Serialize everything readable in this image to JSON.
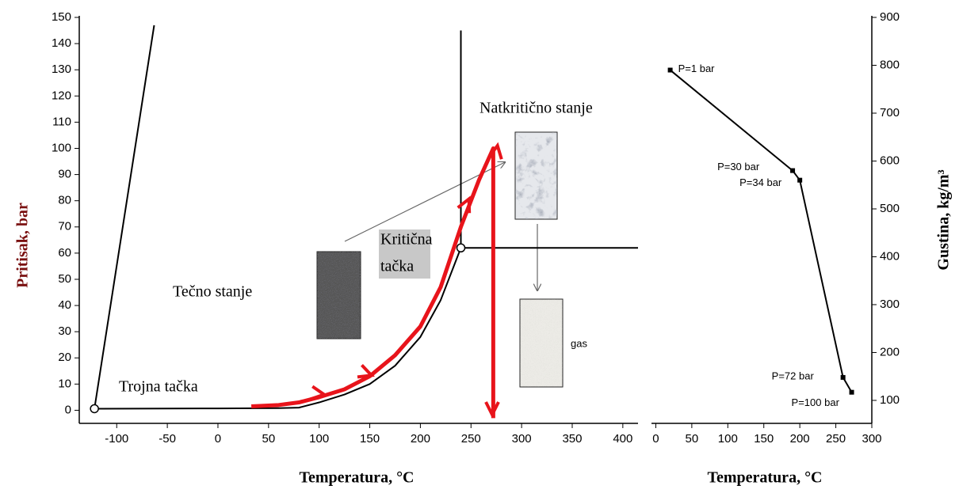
{
  "chart_data": [
    {
      "type": "line",
      "x_label": "Temperatura, °C",
      "y_label": "Pritisak, bar",
      "xlim": [
        -137,
        415
      ],
      "ylim": [
        -5,
        150
      ],
      "xticks": [
        -100,
        -50,
        0,
        50,
        100,
        150,
        200,
        250,
        300,
        350,
        400
      ],
      "yticks": [
        0,
        10,
        20,
        30,
        40,
        50,
        60,
        70,
        80,
        90,
        100,
        110,
        120,
        130,
        140,
        150
      ],
      "y_axis_side": "left",
      "series": [
        {
          "color": "#000000",
          "x": [
            -122,
            -63
          ],
          "values": [
            0.6,
            147
          ]
        },
        {
          "color": "#000000",
          "x": [
            -122,
            0,
            60,
            80,
            100,
            125,
            150,
            175,
            200,
            220,
            240
          ],
          "values": [
            0.6,
            0.7,
            0.8,
            1,
            3,
            6,
            10,
            17,
            28,
            42,
            62
          ]
        },
        {
          "color": "#000000",
          "x": [
            240,
            240
          ],
          "values": [
            62,
            145
          ]
        },
        {
          "color": "#000000",
          "x": [
            240,
            415
          ],
          "values": [
            62,
            62
          ]
        },
        {
          "color": "#e8141b",
          "x": [
            33,
            60,
            80,
            100,
            125,
            150,
            175,
            200,
            220,
            240,
            258,
            272,
            272
          ],
          "values": [
            1.5,
            2,
            3,
            5,
            8,
            13,
            21,
            32,
            47,
            70,
            88,
            100,
            -3
          ]
        }
      ],
      "markers": {
        "x": [
          -122,
          240
        ],
        "values": [
          0.6,
          62
        ]
      },
      "annotations": [
        "Natkritično stanje",
        "Kritična",
        "tačka",
        "Tečno stanje",
        "Trojna tačka",
        "gas"
      ]
    },
    {
      "type": "line",
      "x_label": "Temperatura, °C",
      "y_label": "Gustina, kg/m³",
      "xlim": [
        -6,
        300
      ],
      "ylim": [
        52,
        900
      ],
      "xticks": [
        0,
        50,
        100,
        150,
        200,
        250,
        300
      ],
      "yticks": [
        100,
        200,
        300,
        400,
        500,
        600,
        700,
        800,
        900
      ],
      "y_axis_side": "right",
      "series": [
        {
          "color": "#000000",
          "x": [
            20,
            190,
            200,
            260,
            272
          ],
          "values": [
            790,
            580,
            560,
            148,
            117
          ],
          "point_labels": [
            "P=1 bar",
            "P=30 bar",
            "P=34 bar",
            "P=72 bar",
            "P=100 bar"
          ]
        }
      ]
    }
  ]
}
